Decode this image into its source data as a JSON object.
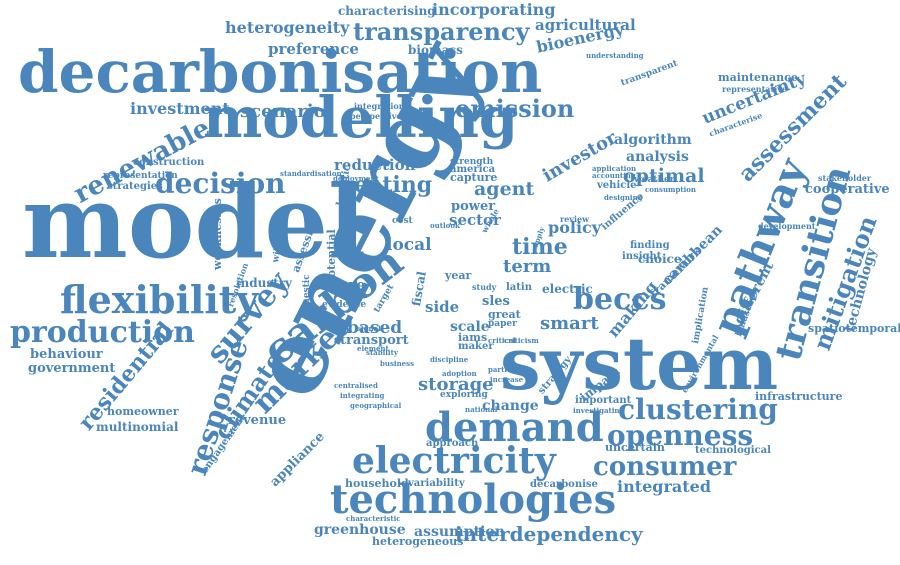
{
  "palette": {
    "word": "#4a86bb",
    "background": "#ffffff"
  },
  "words": [
    "energy",
    "model",
    "system",
    "modelling",
    "decarbonisation",
    "demand",
    "technologies",
    "electricity",
    "carbon",
    "pathway",
    "transition",
    "flexibility",
    "production",
    "market",
    "survey",
    "response",
    "clustering",
    "openness",
    "consumer",
    "transparency",
    "decision",
    "renewable",
    "mitigation",
    "climate",
    "beccs",
    "residential",
    "emission",
    "heating",
    "assessment",
    "uncertainty",
    "scenario",
    "investment",
    "heterogeneity",
    "incorporating",
    "characterising",
    "agricultural",
    "bioenergy",
    "preference",
    "biomass",
    "optimal",
    "agent",
    "smart",
    "storage",
    "time",
    "term",
    "local",
    "policy",
    "based",
    "future",
    "transport",
    "interdependency",
    "integrated",
    "greenhouse",
    "assumption",
    "technology",
    "cooperative",
    "infrastructure",
    "revenue",
    "appliance",
    "household",
    "multinomial",
    "homeowner",
    "government",
    "behaviour",
    "construction",
    "strategies",
    "investor",
    "algorithm",
    "analysis",
    "reduction",
    "capture",
    "sector",
    "power",
    "america",
    "making",
    "caribbean",
    "different",
    "framework",
    "change",
    "scale",
    "sles",
    "side",
    "iams",
    "maker",
    "latin",
    "year",
    "electric",
    "vehicle",
    "choice",
    "insight",
    "finding",
    "impact",
    "important",
    "approach",
    "exploring",
    "uncertain",
    "technological",
    "decarbonise",
    "variability",
    "heterogeneous",
    "engagement",
    "industry",
    "weaknesses",
    "assessing",
    "potential",
    "maintenance",
    "representative",
    "understanding",
    "transparent",
    "characterise",
    "stakeholder",
    "spatiotemporal",
    "landscape",
    "implication",
    "development",
    "environmental",
    "representation",
    "integration",
    "perspective",
    "strength",
    "logistic",
    "strategy",
    "criticism",
    "critical",
    "great",
    "paper",
    "fiscal",
    "study",
    "influence",
    "evidence",
    "element",
    "business",
    "target",
    "signal",
    "centralised",
    "integrating",
    "geographical",
    "investigating",
    "particular",
    "increase",
    "adoption",
    "discipline",
    "stability",
    "characteristic",
    "deployment",
    "weather",
    "consumption",
    "application",
    "accounting",
    "designing",
    "standardisation",
    "domestic",
    "resolution",
    "willingness",
    "cost",
    "review",
    "outlook",
    "national",
    "whole",
    "supply"
  ]
}
